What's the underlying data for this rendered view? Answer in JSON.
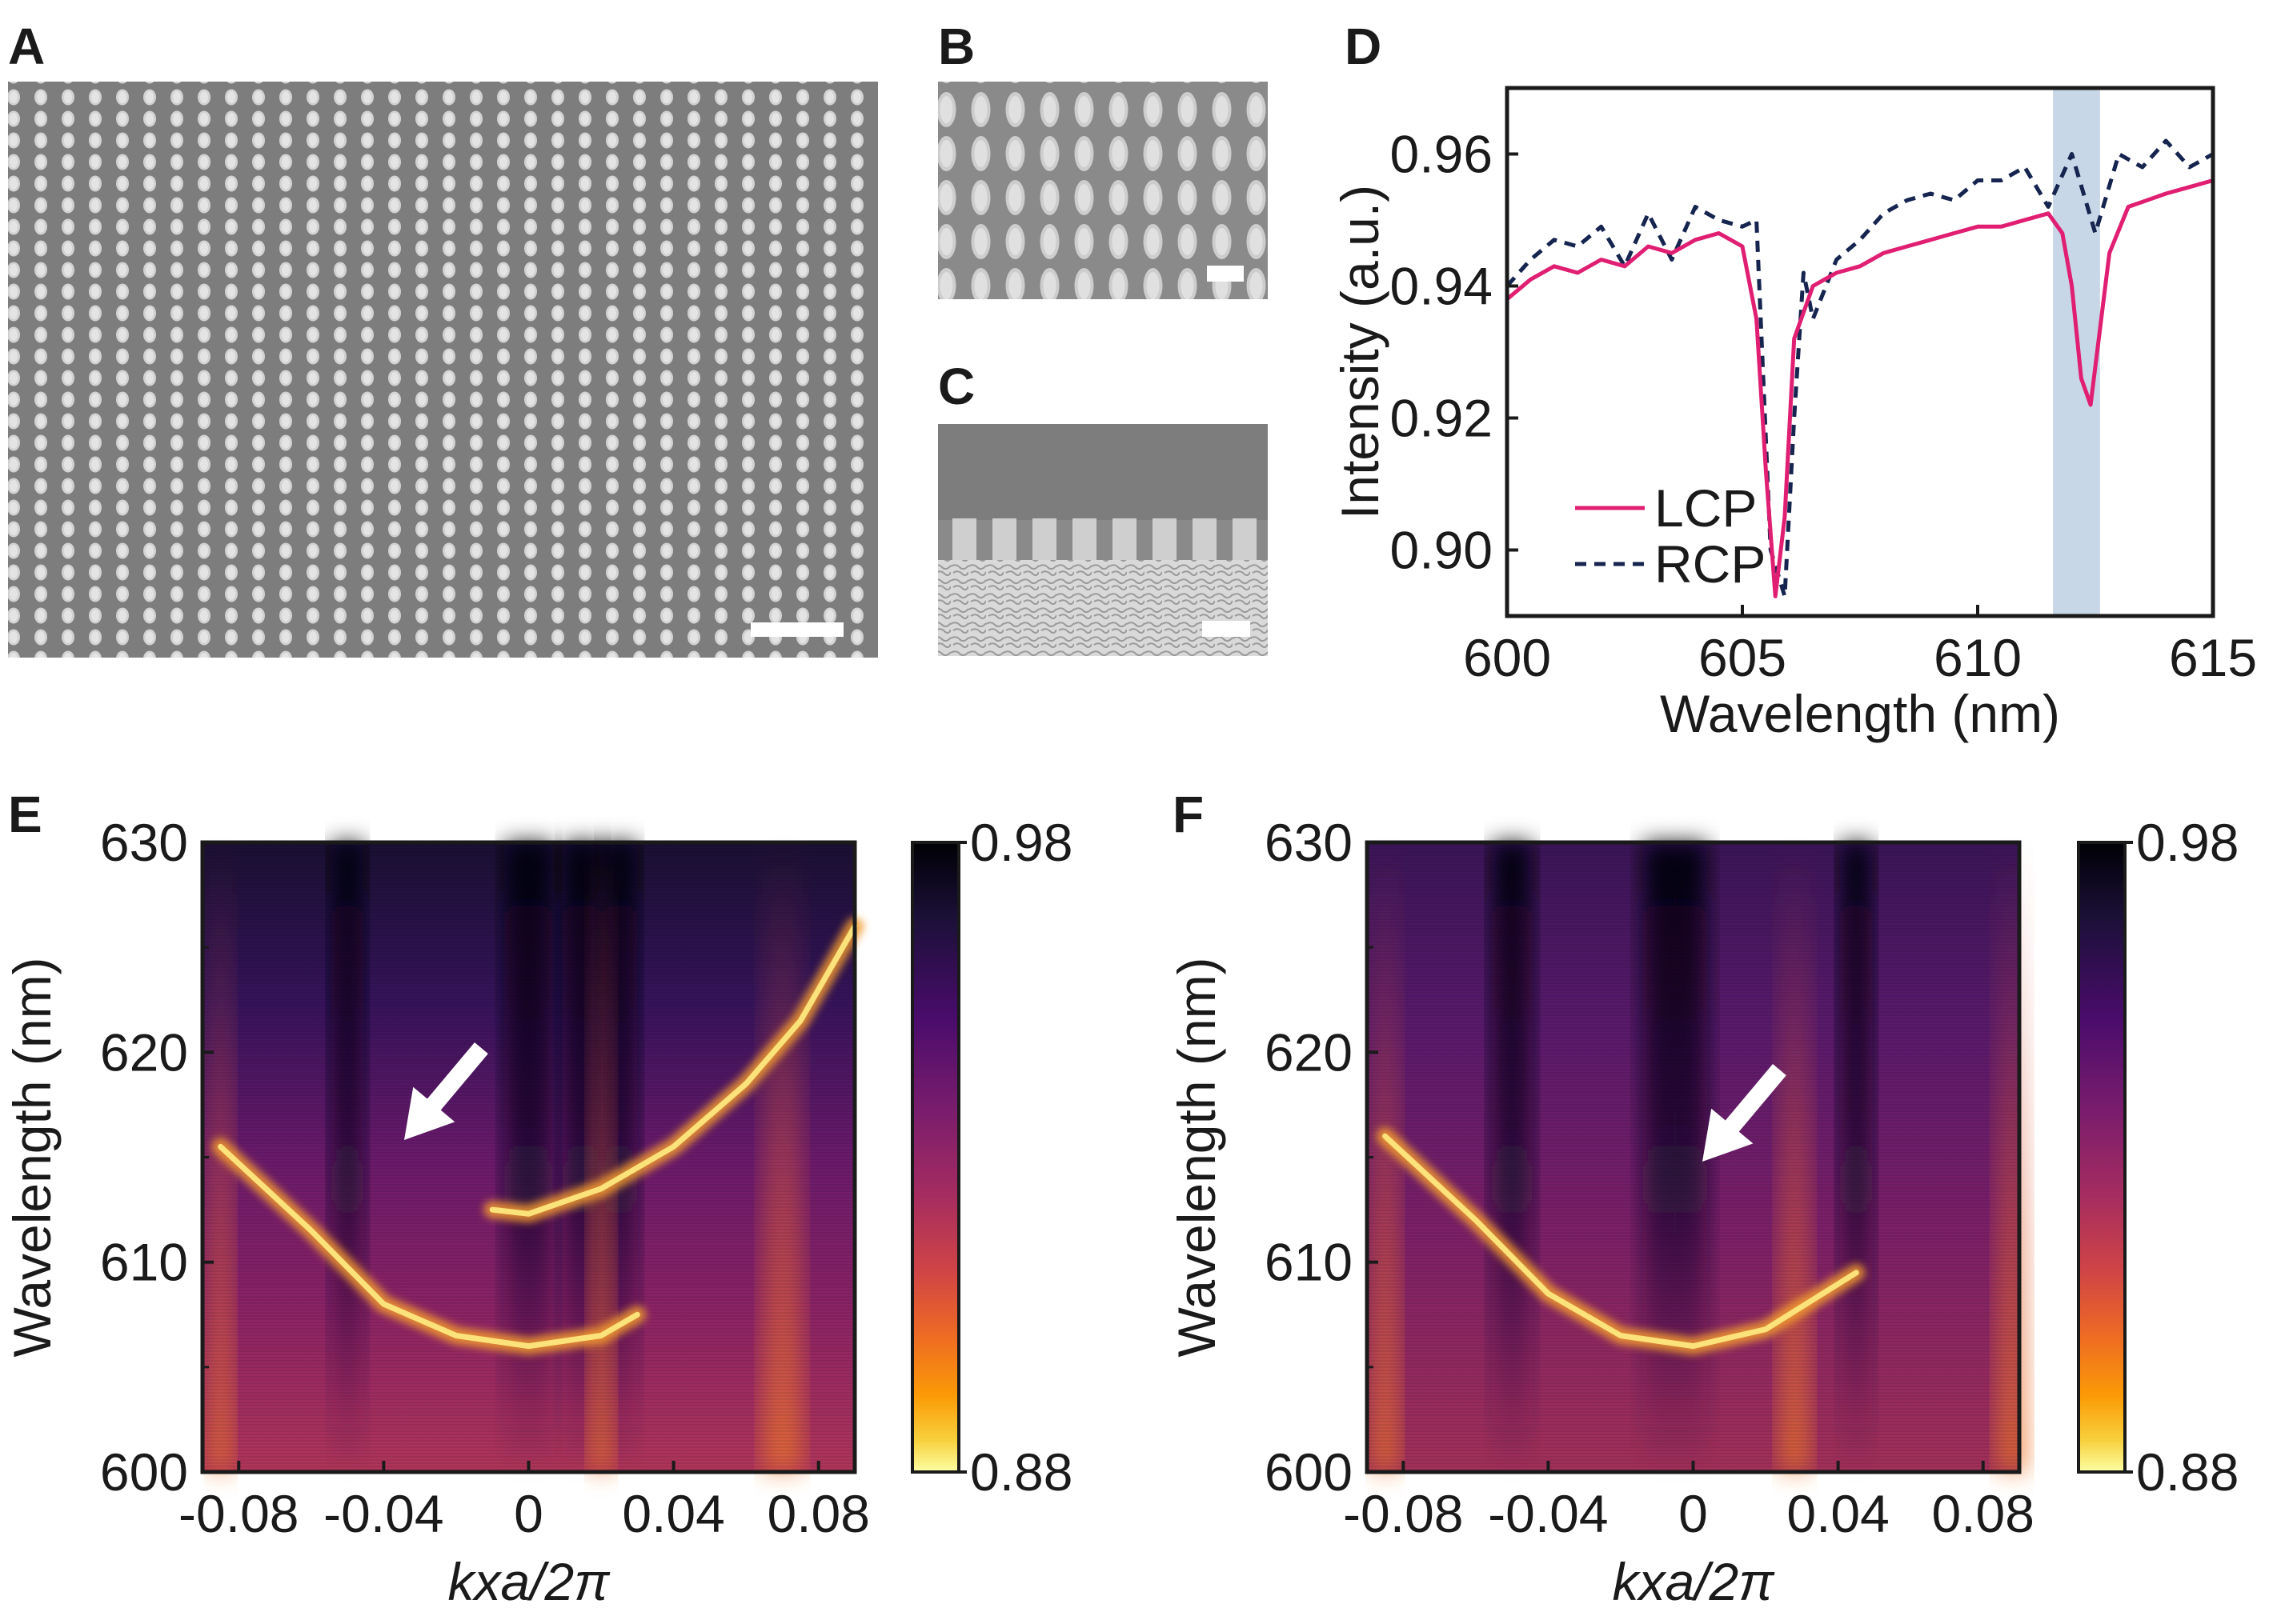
{
  "figure": {
    "panels": {
      "A": {
        "letter": "A"
      },
      "B": {
        "letter": "B"
      },
      "C": {
        "letter": "C"
      },
      "D": {
        "letter": "D"
      },
      "E": {
        "letter": "E"
      },
      "F": {
        "letter": "F"
      }
    }
  },
  "colors": {
    "lcp": "#e01f73",
    "rcp": "#16254f",
    "highlight": "#c8d7e8",
    "sem_bg": "#7a7a7a",
    "sem_pillar": "#cfcfcf"
  },
  "chart_data": [
    {
      "panel": "D",
      "type": "line",
      "xlabel": "Wavelength (nm)",
      "ylabel": "Intensity (a.u.)",
      "xlim": [
        600,
        615
      ],
      "ylim": [
        0.89,
        0.97
      ],
      "xticks": [
        "600",
        "605",
        "610",
        "615"
      ],
      "yticks": [
        "0.90",
        "0.92",
        "0.94",
        "0.96"
      ],
      "highlight_band": [
        611.6,
        612.6
      ],
      "legend_position": "bottom-left",
      "series": [
        {
          "name": "LCP",
          "style": "solid",
          "x": [
            600,
            600.5,
            601,
            601.5,
            602,
            602.5,
            603,
            603.5,
            604,
            604.5,
            605,
            605.3,
            605.5,
            605.7,
            605.9,
            606.1,
            606.5,
            607,
            607.5,
            608,
            608.5,
            609,
            609.5,
            610,
            610.5,
            611,
            611.5,
            611.8,
            612.0,
            612.2,
            612.4,
            612.8,
            613.2,
            613.6,
            614,
            614.5,
            615
          ],
          "y": [
            0.938,
            0.941,
            0.943,
            0.942,
            0.944,
            0.943,
            0.946,
            0.945,
            0.947,
            0.948,
            0.946,
            0.935,
            0.912,
            0.893,
            0.905,
            0.932,
            0.94,
            0.942,
            0.943,
            0.945,
            0.946,
            0.947,
            0.948,
            0.949,
            0.949,
            0.95,
            0.951,
            0.948,
            0.94,
            0.926,
            0.922,
            0.945,
            0.952,
            0.953,
            0.954,
            0.955,
            0.956
          ]
        },
        {
          "name": "RCP",
          "style": "dashed",
          "x": [
            600,
            600.5,
            601,
            601.5,
            602,
            602.5,
            603,
            603.5,
            604,
            604.5,
            605,
            605.3,
            605.6,
            605.9,
            606.1,
            606.3,
            606.5,
            607,
            607.5,
            608,
            608.5,
            609,
            609.5,
            610,
            610.5,
            611,
            611.5,
            612,
            612.5,
            613,
            613.5,
            614,
            614.5,
            615
          ],
          "y": [
            0.94,
            0.944,
            0.947,
            0.946,
            0.949,
            0.943,
            0.951,
            0.944,
            0.952,
            0.95,
            0.949,
            0.95,
            0.9,
            0.893,
            0.92,
            0.942,
            0.935,
            0.944,
            0.947,
            0.951,
            0.953,
            0.954,
            0.953,
            0.956,
            0.956,
            0.958,
            0.952,
            0.96,
            0.948,
            0.96,
            0.958,
            0.962,
            0.958,
            0.96
          ]
        }
      ],
      "legend": [
        "LCP",
        "RCP"
      ]
    },
    {
      "panel": "E",
      "type": "heatmap",
      "xlabel": "kxa/2π",
      "ylabel": "Wavelength (nm)",
      "xlim": [
        -0.09,
        0.09
      ],
      "ylim": [
        600,
        630
      ],
      "xticks": [
        "-0.08",
        "-0.04",
        "0",
        "0.04",
        "0.08"
      ],
      "yticks": [
        "600",
        "610",
        "620",
        "630"
      ],
      "colorbar": {
        "min_label": "0.88",
        "max_label": "0.98",
        "min": 0.88,
        "max": 0.98
      },
      "lower_band": {
        "x": [
          -0.085,
          -0.06,
          -0.04,
          -0.02,
          0,
          0.02,
          0.03
        ],
        "y": [
          615.5,
          611.5,
          608.0,
          606.5,
          606.0,
          606.5,
          607.5
        ]
      },
      "upper_band": {
        "x": [
          -0.01,
          0,
          0.02,
          0.04,
          0.06,
          0.075,
          0.09
        ],
        "y": [
          612.5,
          612.3,
          613.5,
          615.5,
          618.5,
          621.5,
          626.0
        ]
      },
      "arrow": "white arrow pointing down-left"
    },
    {
      "panel": "F",
      "type": "heatmap",
      "xlabel": "kxa/2π",
      "ylabel": "Wavelength (nm)",
      "xlim": [
        -0.09,
        0.09
      ],
      "ylim": [
        600,
        630
      ],
      "xticks": [
        "-0.08",
        "-0.04",
        "0",
        "0.04",
        "0.08"
      ],
      "yticks": [
        "600",
        "610",
        "620",
        "630"
      ],
      "colorbar": {
        "min_label": "0.88",
        "max_label": "0.98",
        "min": 0.88,
        "max": 0.98
      },
      "lower_band": {
        "x": [
          -0.085,
          -0.06,
          -0.04,
          -0.02,
          0,
          0.02,
          0.045
        ],
        "y": [
          616.0,
          612.0,
          608.5,
          606.5,
          606.0,
          606.8,
          609.5
        ]
      },
      "arrow": "white arrow pointing down-left"
    }
  ]
}
